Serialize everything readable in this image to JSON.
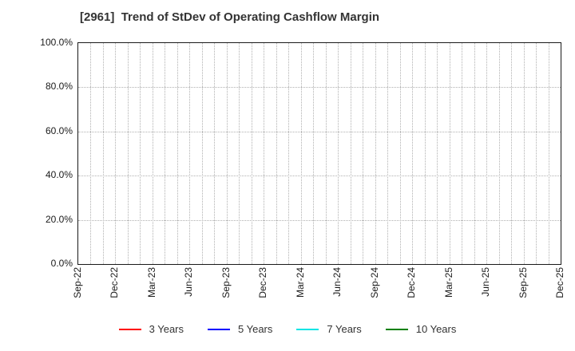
{
  "chart_data": {
    "type": "line",
    "title": "[2961]  Trend of StDev of Operating Cashflow Margin",
    "categories": [
      "Sep-22",
      "Dec-22",
      "Mar-23",
      "Jun-23",
      "Sep-23",
      "Dec-23",
      "Mar-24",
      "Jun-24",
      "Sep-24",
      "Dec-24",
      "Mar-25",
      "Jun-25",
      "Sep-25",
      "Dec-25"
    ],
    "x_minor_gridlines_per_interval": 3,
    "y_ticks": [
      {
        "value": 0,
        "label": "0.0%"
      },
      {
        "value": 20,
        "label": "20.0%"
      },
      {
        "value": 40,
        "label": "40.0%"
      },
      {
        "value": 60,
        "label": "60.0%"
      },
      {
        "value": 80,
        "label": "80.0%"
      },
      {
        "value": 100,
        "label": "100.0%"
      }
    ],
    "ylim": [
      0,
      100
    ],
    "xlabel": "",
    "ylabel": "",
    "grid": true,
    "grid_style": "dotted",
    "legend_position": "bottom",
    "series": [
      {
        "name": "3 Years",
        "color": "#ff0000",
        "values": []
      },
      {
        "name": "5 Years",
        "color": "#0000ff",
        "values": []
      },
      {
        "name": "7 Years",
        "color": "#00e5e5",
        "values": []
      },
      {
        "name": "10 Years",
        "color": "#008000",
        "values": []
      }
    ]
  }
}
